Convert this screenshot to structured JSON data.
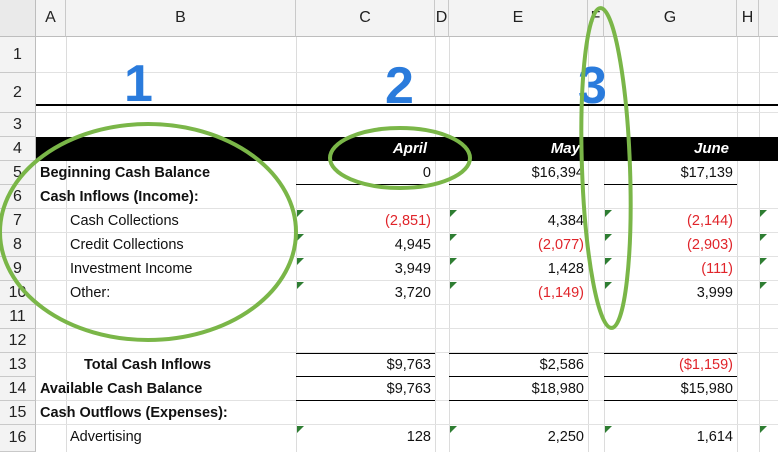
{
  "columns": [
    "A",
    "B",
    "C",
    "D",
    "E",
    "F",
    "G",
    "H"
  ],
  "rows": [
    "1",
    "2",
    "3",
    "4",
    "5",
    "6",
    "7",
    "8",
    "9",
    "10",
    "11",
    "12",
    "13",
    "14",
    "15",
    "16"
  ],
  "months": [
    "April",
    "May",
    "June"
  ],
  "annotations": [
    "1",
    "2",
    "3"
  ],
  "labels": {
    "beginning": "Beginning Cash Balance",
    "inflows": "Cash Inflows (Income):",
    "cash_collections": "Cash Collections",
    "credit_collections": "Credit Collections",
    "investment_income": "Investment Income",
    "other": "Other:",
    "total_inflows": "Total Cash Inflows",
    "available": "Available Cash Balance",
    "outflows": "Cash Outflows (Expenses):",
    "advertising": "Advertising"
  },
  "values": {
    "beginning": [
      "0",
      "$16,394",
      "$17,139"
    ],
    "cash_collections": [
      "(2,851)",
      "4,384",
      "(2,144)"
    ],
    "credit_collections": [
      "4,945",
      "(2,077)",
      "(2,903)"
    ],
    "investment_income": [
      "3,949",
      "1,428",
      "(111)"
    ],
    "other": [
      "3,720",
      "(1,149)",
      "3,999"
    ],
    "total_inflows": [
      "$9,763",
      "$2,586",
      "($1,159)"
    ],
    "available": [
      "$9,763",
      "$18,980",
      "$15,980"
    ],
    "advertising": [
      "128",
      "2,250",
      "1,614"
    ]
  },
  "colors": {
    "negative": "#e0242a",
    "annotation_number": "#2a7bdc",
    "annotation_circle": "#7ab648",
    "error_flag": "#2e7d32"
  }
}
